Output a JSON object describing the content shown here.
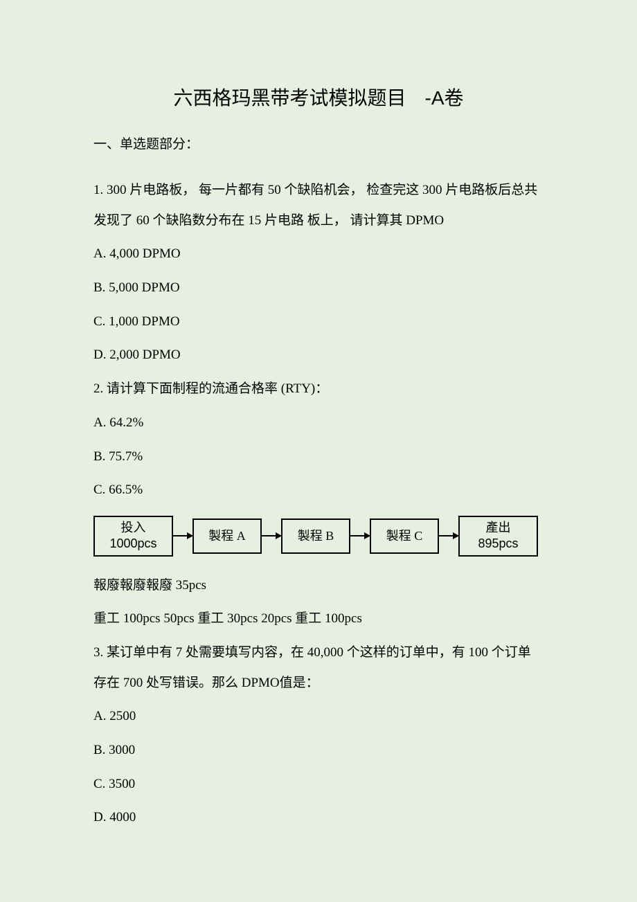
{
  "title": {
    "main": "六西格玛黑带考试模拟题目",
    "suffix": "-A卷"
  },
  "section_header": "一、单选题部分：",
  "q1": {
    "text": "1.  300 片电路板，  每一片都有   50 个缺陷机会，   检查完这   300 片电路板后总共发现了    60 个缺陷数分布在   15 片电路   板上，  请计算其 DPMO",
    "options": {
      "a": "A.  4,000   DPMO",
      "b": "B.  5,000   DPMO",
      "c": "C.  1,000   DPMO",
      "d": "D.  2,000   DPMO"
    }
  },
  "q2": {
    "text": "2.   请计算下面制程的流通合格率      (RTY)：",
    "options": {
      "a": "A.  64.2%",
      "b": "B.  75.7%",
      "c": "C.  66.5%"
    },
    "flow": {
      "input_label": "投入",
      "input_qty": "1000pcs",
      "step_a": "製程 A",
      "step_b": "製程 B",
      "step_c": "製程 C",
      "output_label": "產出",
      "output_qty": "895pcs",
      "scrap_line": "報廢報廢報廢   35pcs",
      "rework_line": "重工 100pcs  50pcs  重工 30pcs  20pcs  重工 100pcs"
    }
  },
  "q3": {
    "text": "3.   某订单中有  7 处需要填写内容，在    40,000 个这样的订单中，有 100 个订单存在  700 处写错误。那么   DPMO值是：",
    "options": {
      "a": "A.  2500",
      "b": "B.  3000",
      "c": "C.  3500",
      "d": "D.  4000"
    }
  }
}
